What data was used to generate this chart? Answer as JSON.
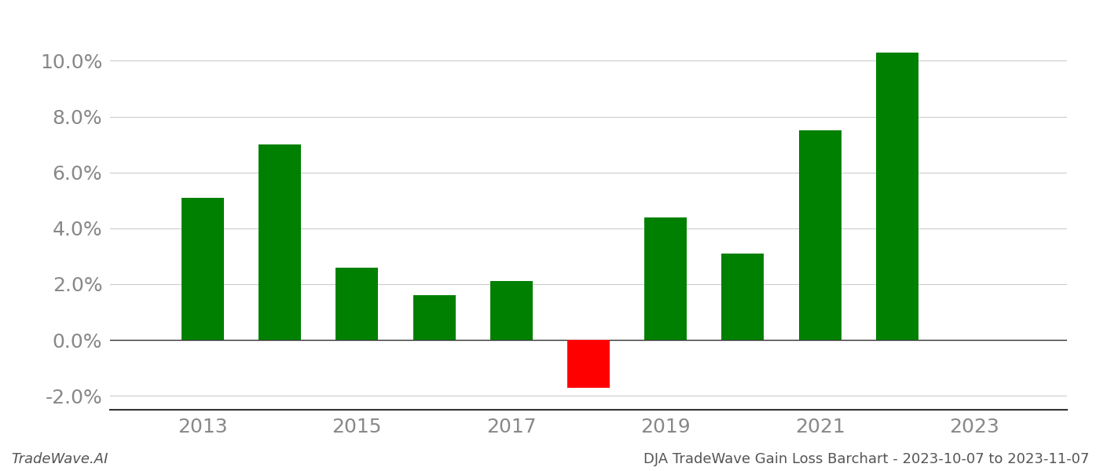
{
  "years": [
    2013,
    2014,
    2015,
    2016,
    2017,
    2018,
    2019,
    2020,
    2021,
    2022
  ],
  "values": [
    0.051,
    0.07,
    0.026,
    0.016,
    0.021,
    -0.017,
    0.044,
    0.031,
    0.075,
    0.103
  ],
  "colors": [
    "#008000",
    "#008000",
    "#008000",
    "#008000",
    "#008000",
    "#ff0000",
    "#008000",
    "#008000",
    "#008000",
    "#008000"
  ],
  "ylim": [
    -0.025,
    0.115
  ],
  "yticks": [
    -0.02,
    0.0,
    0.02,
    0.04,
    0.06,
    0.08,
    0.1
  ],
  "xlim": [
    2011.8,
    2024.2
  ],
  "xticks": [
    2013,
    2015,
    2017,
    2019,
    2021,
    2023
  ],
  "footer_left": "TradeWave.AI",
  "footer_right": "DJA TradeWave Gain Loss Barchart - 2023-10-07 to 2023-11-07",
  "bar_width": 0.55,
  "background_color": "#ffffff",
  "grid_color": "#cccccc",
  "tick_color": "#888888",
  "spine_color": "#333333",
  "tick_fontsize": 18,
  "footer_fontsize": 13
}
